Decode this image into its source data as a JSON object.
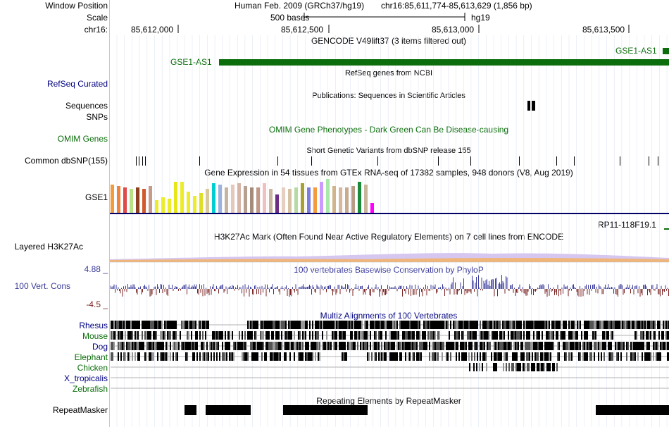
{
  "header": {
    "window_position_label": "Window Position",
    "scale_label": "Scale",
    "chrom_label": "chr16:",
    "assembly_text": "Human Feb. 2009 (GRCh37/hg19)",
    "position_text": "chr16:85,611,774-85,613,629 (1,856 bp)",
    "scale_bar_text": "500 bases",
    "scale_db": "hg19",
    "ruler_ticks": [
      "85,612,000",
      "85,612,500",
      "85,613,000",
      "85,613,500"
    ]
  },
  "tracks": {
    "gencode": {
      "title": "GENCODE V49lift37 (3 items filtered out)",
      "gene_left": "GSE1-AS1",
      "gene_right": "GSE1-AS1",
      "color": "#0b6d0b"
    },
    "refseq": {
      "label": "RefSeq Curated",
      "title": "RefSeq genes from NCBI"
    },
    "publications": {
      "title": "Publications: Sequences in Scientific Articles",
      "label_line1": "Sequences",
      "label_line2": "SNPs"
    },
    "omim": {
      "label": "OMIM Genes",
      "title": "OMIM Gene Phenotypes - Dark Green Can Be Disease-causing"
    },
    "dbsnp": {
      "label": "Common dbSNP(155)",
      "title": "Short Genetic Variants from dbSNP release 155"
    },
    "gtex": {
      "title": "Gene Expression in 54 tissues from GTEx RNA-seq of 17382 samples, 948 donors (V8, Aug 2019)",
      "label": "GSE1",
      "right_gene": "RP11-118F19.1"
    },
    "h3k27ac": {
      "label": "Layered H3K27Ac",
      "title": "H3K27Ac Mark (Often Found Near Active Regulatory Elements) on 7 cell lines from ENCODE"
    },
    "conservation": {
      "label": "100 Vert. Cons",
      "title": "100 vertebrates Basewise Conservation by PhyloP",
      "max_label": "4.88 _",
      "min_label": "-4.5 _"
    },
    "multiz": {
      "title": "Multiz Alignments of 100 Vertebrates",
      "species": [
        "Rhesus",
        "Mouse",
        "Dog",
        "Elephant",
        "Chicken",
        "X_tropicalis",
        "Zebrafish"
      ]
    },
    "repeatmasker": {
      "label": "RepeatMasker",
      "title": "Repeating Elements by RepeatMasker"
    }
  },
  "colors": {
    "navy": "#000080",
    "dark_green": "#0b6d0b",
    "phylop_pos": "#3b3b9b",
    "phylop_neg": "#7a2323",
    "sidebar_line": "#f4b6b6"
  }
}
